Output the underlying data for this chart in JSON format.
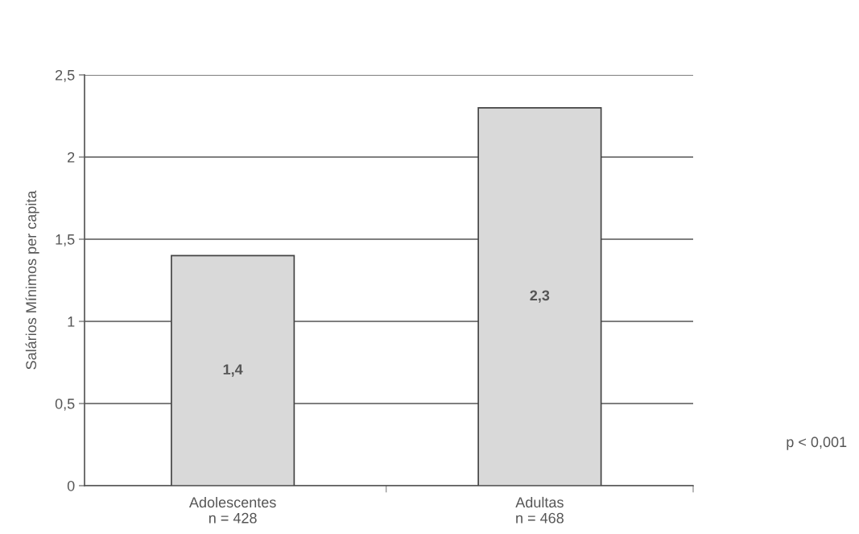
{
  "chart_data": {
    "type": "bar",
    "categories": [
      "Adolescentes\nn = 428",
      "Adultas\nn = 468"
    ],
    "values": [
      1.4,
      2.3
    ],
    "color": "#d9d9d9",
    "value_labels": [
      "1,4",
      "2,3"
    ],
    "ylabel": "Salários Mínimos per capita",
    "ylim": [
      0,
      2.5
    ],
    "yticks": [
      0,
      {
        "value": 0.5,
        "label": "0,5"
      },
      1,
      {
        "value": 1.5,
        "label": "1,5"
      },
      2,
      {
        "value": 2.5,
        "label": "2,5"
      }
    ],
    "grid": "y",
    "annotations": [
      "p < 0,001"
    ]
  }
}
